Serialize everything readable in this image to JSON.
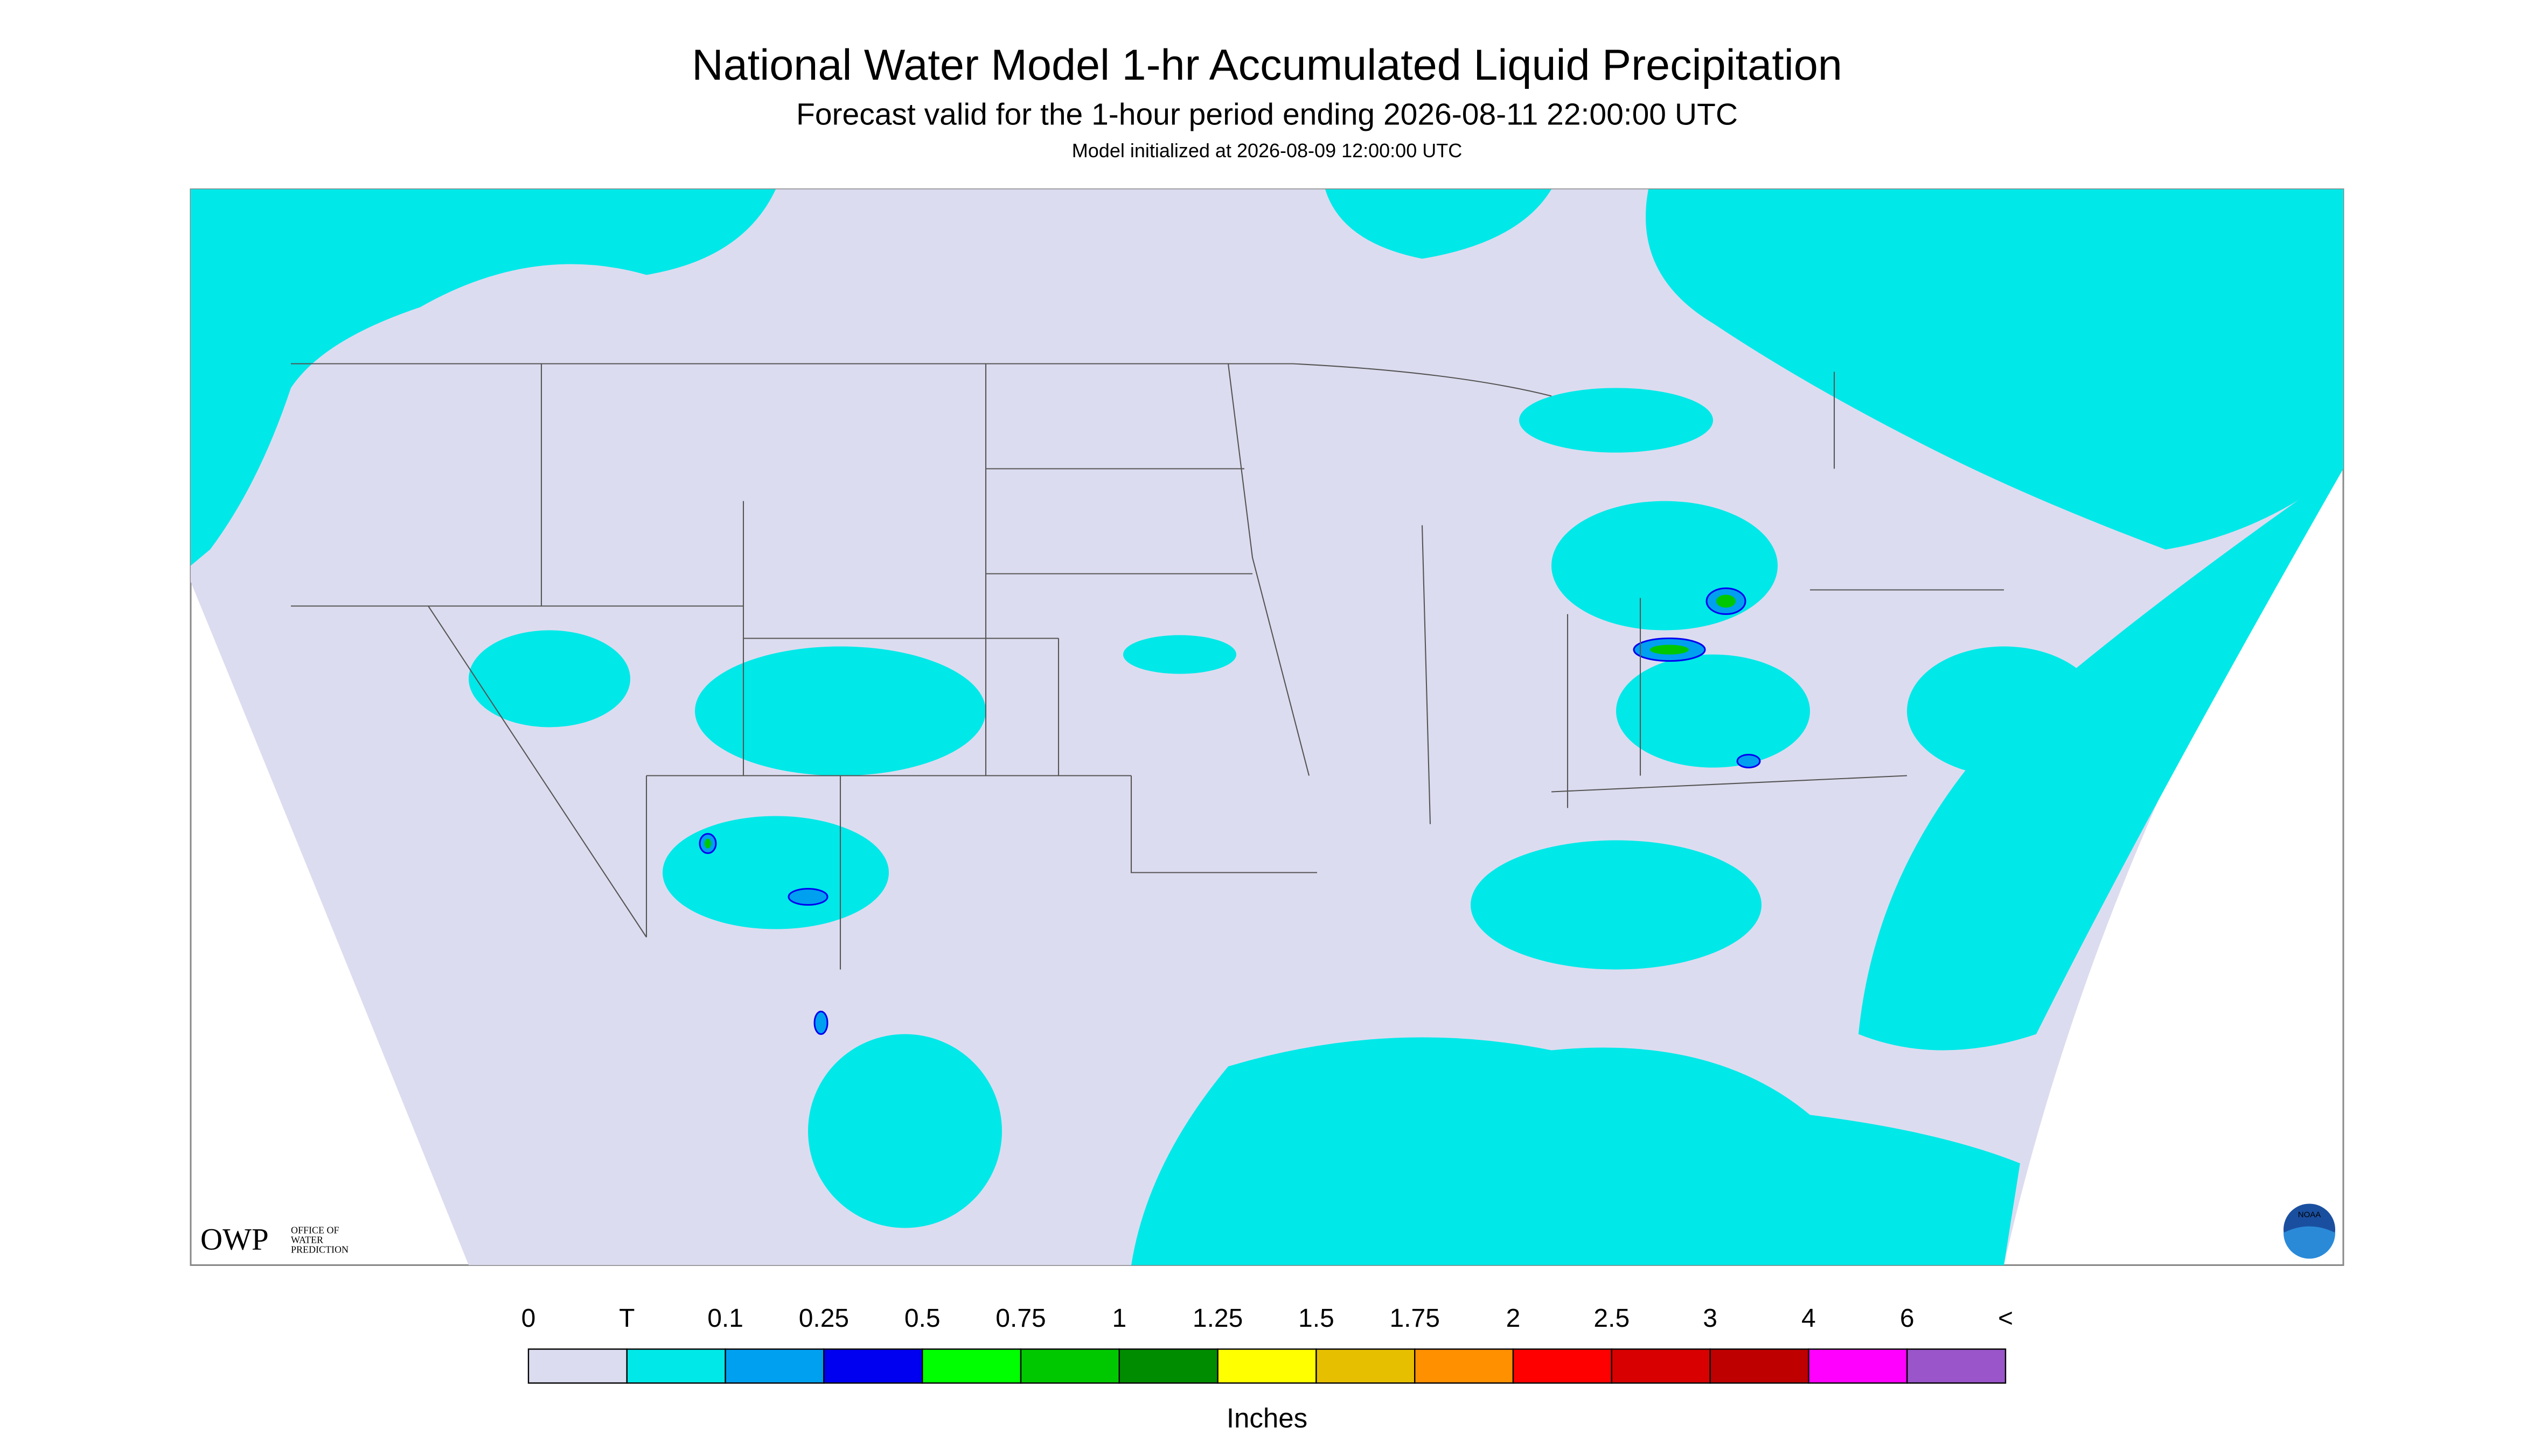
{
  "header": {
    "title": "National Water Model 1-hr Accumulated Liquid Precipitation",
    "subtitle": "Forecast valid for the 1-hour period ending 2026-08-11 22:00:00 UTC",
    "init": "Model initialized at 2026-08-09 12:00:00 UTC"
  },
  "legend": {
    "labels": [
      "0",
      "T",
      "0.1",
      "0.25",
      "0.5",
      "0.75",
      "1",
      "1.25",
      "1.5",
      "1.75",
      "2",
      "2.5",
      "3",
      "4",
      "6",
      "<"
    ],
    "colors": [
      "#dcdcf0",
      "#00e8e8",
      "#00a0f0",
      "#0000f0",
      "#00ff00",
      "#00c800",
      "#008c00",
      "#ffff00",
      "#e6c000",
      "#ff9000",
      "#ff0000",
      "#d80000",
      "#bf0000",
      "#ff00ff",
      "#9955c9"
    ],
    "unit": "Inches"
  },
  "logos": {
    "owp": "OWP",
    "owp_text": [
      "OFFICE OF",
      "WATER",
      "PREDICTION"
    ],
    "noaa": "NOAA"
  }
}
